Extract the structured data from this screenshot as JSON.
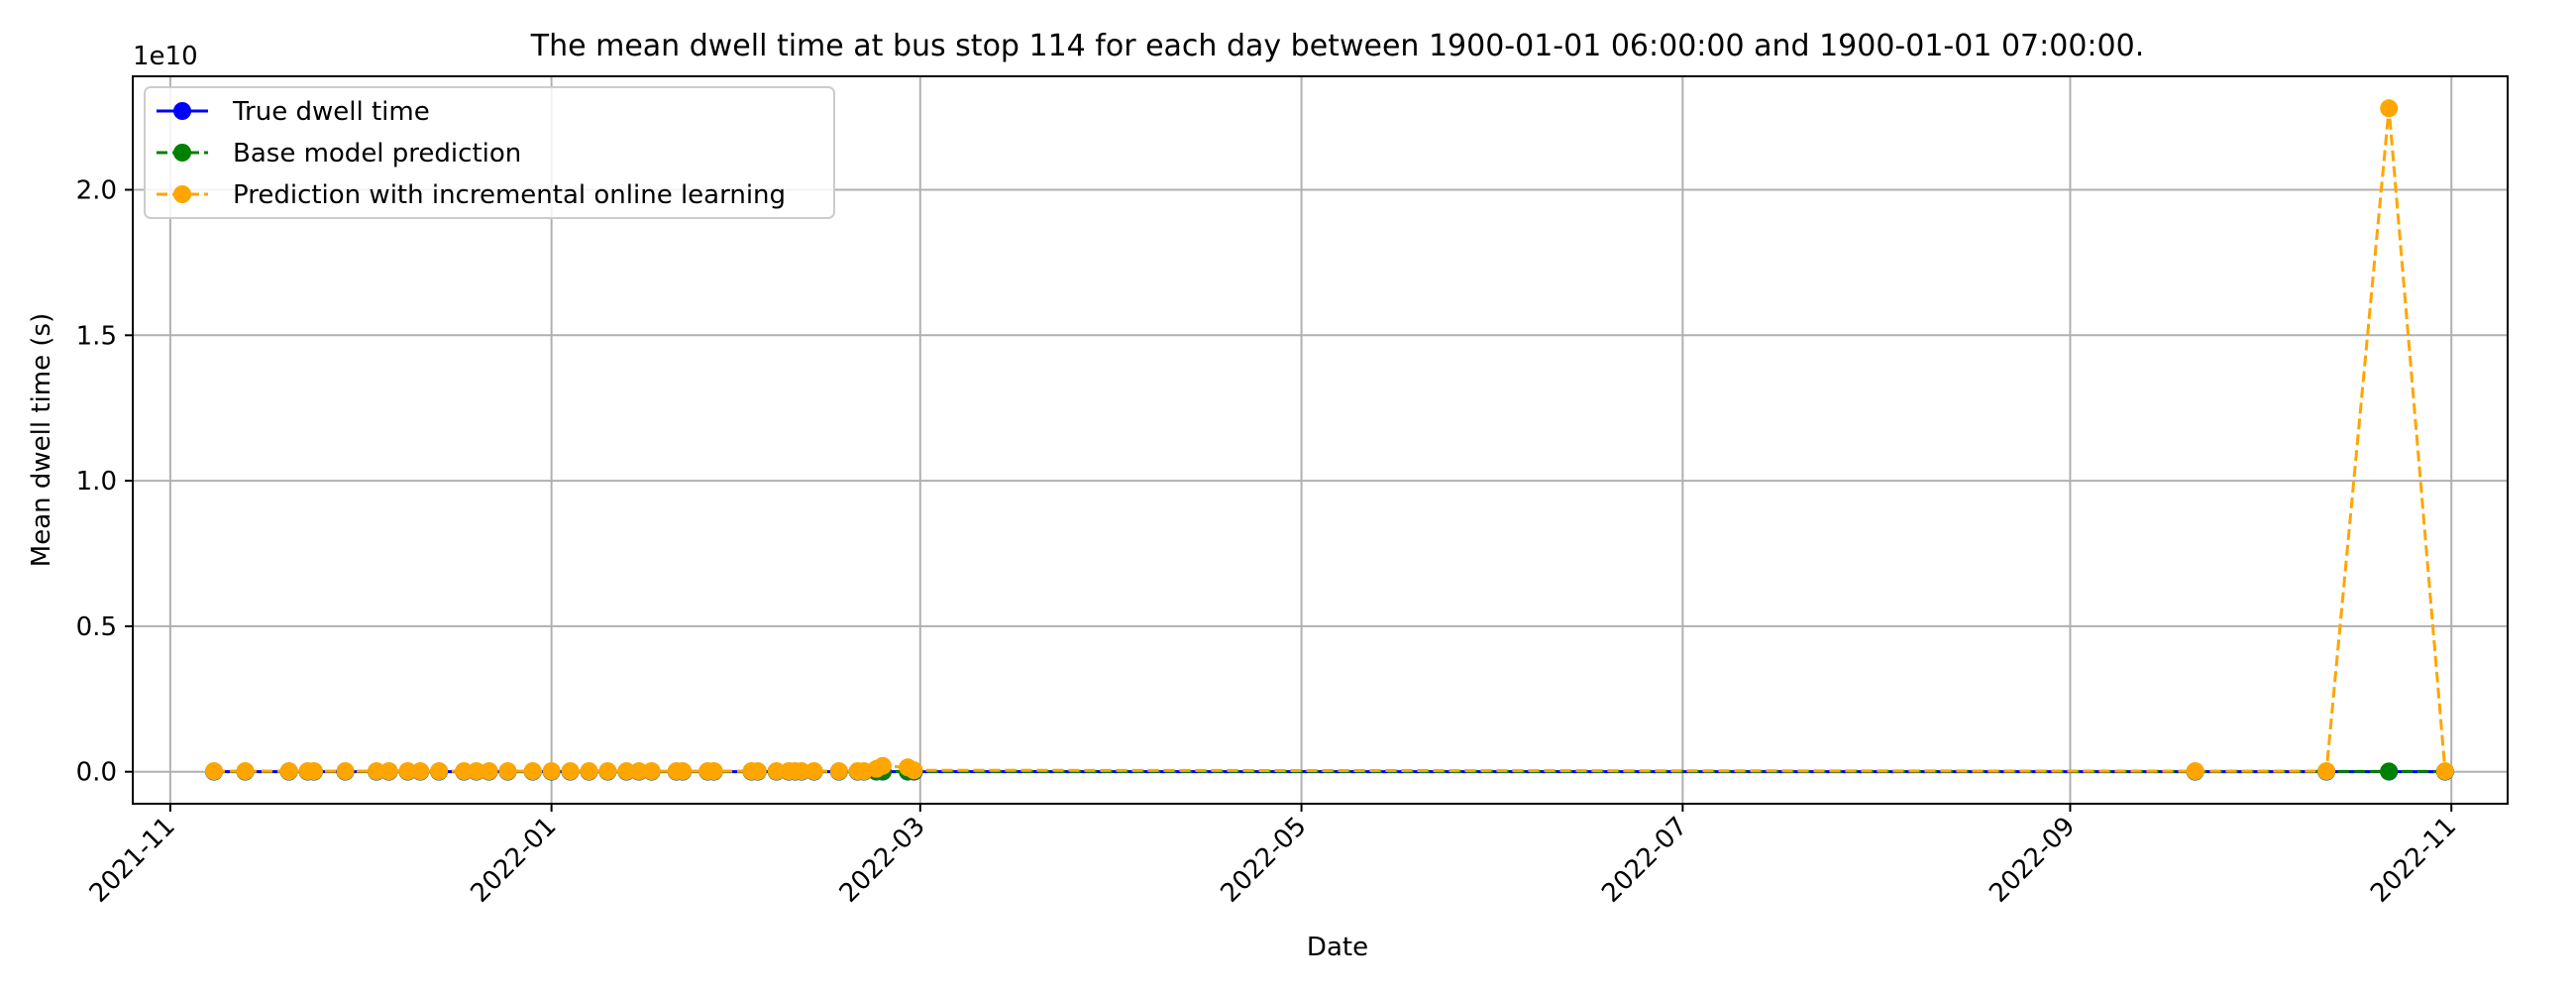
{
  "chart_data": {
    "type": "line",
    "title": "The mean dwell time at bus stop 114 for each day between 1900-01-01 06:00:00 and 1900-01-01 07:00:00.",
    "xlabel": "Date",
    "ylabel": "Mean dwell time (s)",
    "y_offset_label": "1e10",
    "x_axis_type": "date",
    "xlim": [
      "2021-10-26",
      "2022-11-10"
    ],
    "ylim": [
      -1.1,
      23.9
    ],
    "y_unit_multiplier": 10000000000.0,
    "xticks": [
      "2021-11-01",
      "2022-01-01",
      "2022-03-01",
      "2022-05-01",
      "2022-07-01",
      "2022-09-01",
      "2022-11-01"
    ],
    "xtick_labels": [
      "2021-11",
      "2022-01",
      "2022-03",
      "2022-05",
      "2022-07",
      "2022-09",
      "2022-11"
    ],
    "yticks": [
      0,
      5,
      10,
      15,
      20
    ],
    "ytick_labels": [
      "0.0",
      "0.5",
      "1.0",
      "1.5",
      "2.0"
    ],
    "grid": true,
    "legend_position": "top-left",
    "legend": [
      "True dwell time",
      "Base model prediction",
      "Prediction with incremental online learning"
    ],
    "dates": [
      "2021-11-08",
      "2021-11-13",
      "2021-11-20",
      "2021-11-23",
      "2021-11-24",
      "2021-11-29",
      "2021-12-04",
      "2021-12-06",
      "2021-12-09",
      "2021-12-11",
      "2021-12-14",
      "2021-12-18",
      "2021-12-20",
      "2021-12-22",
      "2021-12-25",
      "2021-12-29",
      "2022-01-01",
      "2022-01-04",
      "2022-01-07",
      "2022-01-10",
      "2022-01-13",
      "2022-01-15",
      "2022-01-17",
      "2022-01-21",
      "2022-01-22",
      "2022-01-26",
      "2022-01-27",
      "2022-02-02",
      "2022-02-03",
      "2022-02-06",
      "2022-02-08",
      "2022-02-09",
      "2022-02-10",
      "2022-02-12",
      "2022-02-16",
      "2022-02-19",
      "2022-02-20",
      "2022-02-22",
      "2022-02-23",
      "2022-02-27",
      "2022-02-28",
      "2022-09-21",
      "2022-10-12",
      "2022-10-22",
      "2022-10-31"
    ],
    "series": [
      {
        "name": "True dwell time",
        "color": "#0000ff",
        "dash": "solid",
        "values": [
          0.005,
          0.005,
          0.005,
          0.005,
          0.005,
          0.005,
          0.005,
          0.005,
          0.005,
          0.005,
          0.005,
          0.005,
          0.005,
          0.005,
          0.005,
          0.005,
          0.005,
          0.005,
          0.005,
          0.005,
          0.005,
          0.005,
          0.005,
          0.005,
          0.005,
          0.005,
          0.005,
          0.005,
          0.005,
          0.005,
          0.005,
          0.005,
          0.005,
          0.005,
          0.005,
          0.005,
          0.005,
          0.005,
          0.005,
          0.005,
          0.005,
          0.005,
          0.005,
          0.005,
          0.005
        ]
      },
      {
        "name": "Base model prediction",
        "color": "#008000",
        "dash": "dashed",
        "values": [
          0.01,
          0.01,
          0.01,
          0.01,
          0.01,
          0.01,
          0.01,
          0.01,
          0.01,
          0.01,
          0.01,
          0.01,
          0.01,
          0.01,
          0.01,
          0.01,
          0.01,
          0.01,
          0.01,
          0.01,
          0.01,
          0.01,
          0.01,
          0.01,
          0.01,
          0.01,
          0.01,
          0.01,
          0.01,
          0.01,
          0.01,
          0.01,
          0.01,
          0.01,
          0.01,
          0.01,
          0.01,
          0.01,
          0.01,
          0.01,
          0.01,
          0.01,
          0.01,
          0.01,
          0.01
        ]
      },
      {
        "name": "Prediction with incremental online learning",
        "color": "#ffa500",
        "dash": "dashed",
        "values": [
          0.02,
          0.02,
          0.02,
          0.02,
          0.02,
          0.02,
          0.02,
          0.02,
          0.02,
          0.02,
          0.02,
          0.02,
          0.02,
          0.02,
          0.02,
          0.02,
          0.02,
          0.02,
          0.02,
          0.02,
          0.02,
          0.02,
          0.02,
          0.02,
          0.02,
          0.02,
          0.02,
          0.02,
          0.02,
          0.02,
          0.02,
          0.02,
          0.02,
          0.02,
          0.02,
          0.02,
          0.02,
          0.1,
          0.2,
          0.15,
          0.05,
          0.02,
          0.02,
          22.8,
          0.02
        ]
      }
    ]
  }
}
